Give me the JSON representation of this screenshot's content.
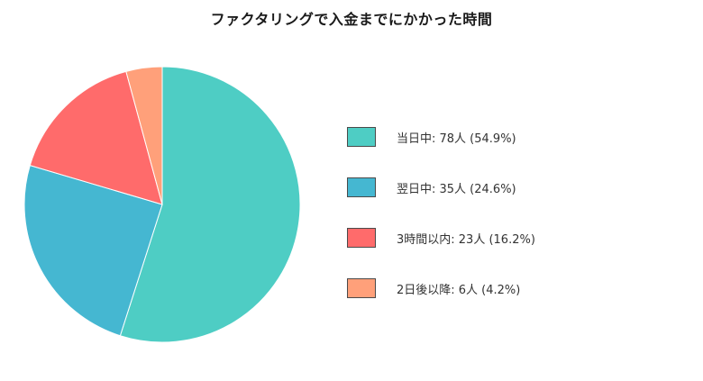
{
  "chart_data": {
    "type": "pie",
    "title": "ファクタリングで入金までにかかった時間",
    "categories": [
      "当日中",
      "翌日中",
      "3時間以内",
      "2日後以降"
    ],
    "values": [
      78,
      35,
      23,
      6
    ],
    "percentages": [
      54.9,
      24.6,
      16.2,
      4.2
    ],
    "unit": "人",
    "colors": [
      "#4ECDC4",
      "#45B7D1",
      "#FF6B6B",
      "#FFA07A"
    ],
    "start_angle": "12 o'clock",
    "direction": "clockwise",
    "legend_position": "right",
    "legend": [
      "当日中: 78人 (54.9%)",
      "翌日中: 35人 (24.6%)",
      "3時間以内: 23人 (16.2%)",
      "2日後以降: 6人 (4.2%)"
    ]
  },
  "legend": {
    "items": [
      {
        "label": "当日中: 78人 (54.9%)",
        "color": "#4ECDC4"
      },
      {
        "label": "翌日中: 35人 (24.6%)",
        "color": "#45B7D1"
      },
      {
        "label": "3時間以内: 23人 (16.2%)",
        "color": "#FF6B6B"
      },
      {
        "label": "2日後以降: 6人 (4.2%)",
        "color": "#FFA07A"
      }
    ]
  }
}
